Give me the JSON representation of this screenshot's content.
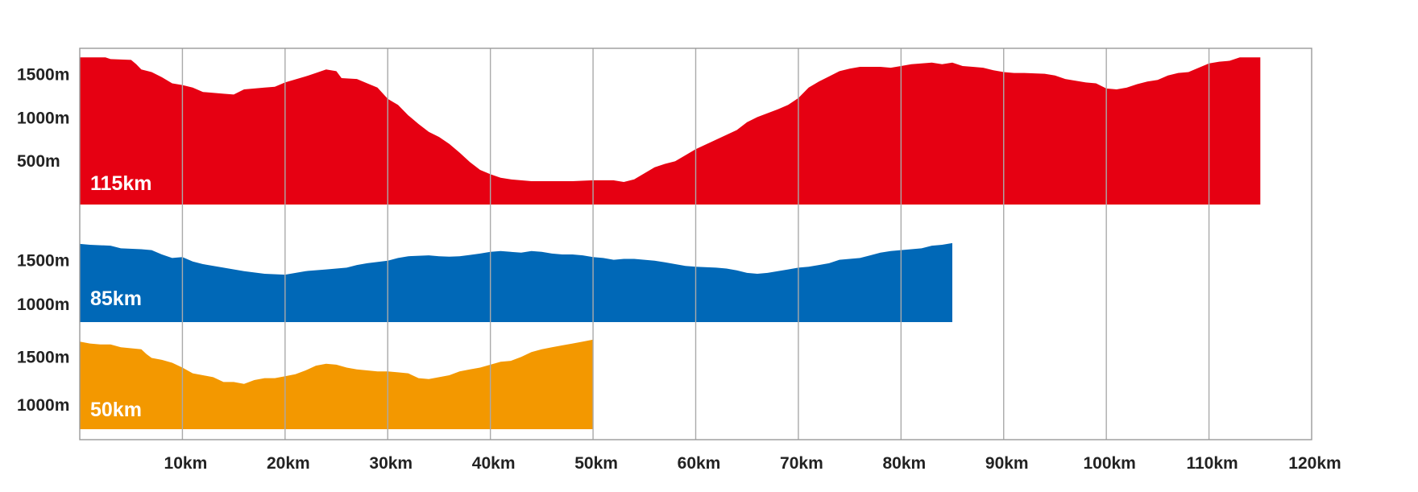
{
  "chart_data": {
    "type": "area",
    "x_unit": "km",
    "xlim": [
      0,
      120
    ],
    "x_ticks": [
      {
        "value": 10,
        "label": "10km"
      },
      {
        "value": 20,
        "label": "20km"
      },
      {
        "value": 30,
        "label": "30km"
      },
      {
        "value": 40,
        "label": "40km"
      },
      {
        "value": 50,
        "label": "50km"
      },
      {
        "value": 60,
        "label": "60km"
      },
      {
        "value": 70,
        "label": "70km"
      },
      {
        "value": 80,
        "label": "80km"
      },
      {
        "value": 90,
        "label": "90km"
      },
      {
        "value": 100,
        "label": "100km"
      },
      {
        "value": 110,
        "label": "110km"
      },
      {
        "value": 120,
        "label": "120km"
      }
    ],
    "grid": true,
    "series": [
      {
        "name": "115km",
        "color": "#e60012",
        "distance_km": 115,
        "ylim": [
          0,
          1700
        ],
        "y_ticks": [
          {
            "value": 500,
            "label": "500m"
          },
          {
            "value": 1000,
            "label": "1000m"
          },
          {
            "value": 1500,
            "label": "1500m"
          }
        ],
        "profile": [
          [
            0,
            1700
          ],
          [
            2.5,
            1700
          ],
          [
            3,
            1680
          ],
          [
            5,
            1670
          ],
          [
            5.5,
            1620
          ],
          [
            6,
            1560
          ],
          [
            7,
            1530
          ],
          [
            8,
            1470
          ],
          [
            9,
            1400
          ],
          [
            10,
            1380
          ],
          [
            11,
            1350
          ],
          [
            12,
            1300
          ],
          [
            14,
            1280
          ],
          [
            15,
            1270
          ],
          [
            16,
            1330
          ],
          [
            18,
            1350
          ],
          [
            19,
            1360
          ],
          [
            20,
            1410
          ],
          [
            22,
            1480
          ],
          [
            23,
            1520
          ],
          [
            24,
            1560
          ],
          [
            25,
            1540
          ],
          [
            25.5,
            1460
          ],
          [
            27,
            1450
          ],
          [
            28,
            1400
          ],
          [
            29,
            1350
          ],
          [
            30,
            1220
          ],
          [
            31,
            1150
          ],
          [
            32,
            1030
          ],
          [
            33,
            930
          ],
          [
            34,
            840
          ],
          [
            35,
            780
          ],
          [
            36,
            700
          ],
          [
            37,
            600
          ],
          [
            38,
            490
          ],
          [
            39,
            400
          ],
          [
            40,
            350
          ],
          [
            41,
            310
          ],
          [
            42,
            290
          ],
          [
            44,
            270
          ],
          [
            46,
            270
          ],
          [
            48,
            270
          ],
          [
            50,
            280
          ],
          [
            52,
            280
          ],
          [
            53,
            260
          ],
          [
            54,
            290
          ],
          [
            55,
            360
          ],
          [
            56,
            430
          ],
          [
            57,
            470
          ],
          [
            58,
            500
          ],
          [
            59,
            570
          ],
          [
            60,
            640
          ],
          [
            62,
            750
          ],
          [
            64,
            860
          ],
          [
            65,
            950
          ],
          [
            66,
            1010
          ],
          [
            68,
            1100
          ],
          [
            69,
            1150
          ],
          [
            70,
            1230
          ],
          [
            71,
            1350
          ],
          [
            72,
            1420
          ],
          [
            73,
            1480
          ],
          [
            74,
            1540
          ],
          [
            75,
            1570
          ],
          [
            76,
            1590
          ],
          [
            78,
            1590
          ],
          [
            79,
            1580
          ],
          [
            80,
            1600
          ],
          [
            81,
            1620
          ],
          [
            82,
            1630
          ],
          [
            83,
            1640
          ],
          [
            84,
            1620
          ],
          [
            85,
            1640
          ],
          [
            86,
            1600
          ],
          [
            87,
            1590
          ],
          [
            88,
            1580
          ],
          [
            89,
            1550
          ],
          [
            90,
            1530
          ],
          [
            91,
            1520
          ],
          [
            92,
            1520
          ],
          [
            94,
            1510
          ],
          [
            95,
            1490
          ],
          [
            96,
            1450
          ],
          [
            98,
            1410
          ],
          [
            99,
            1400
          ],
          [
            100,
            1340
          ],
          [
            101,
            1330
          ],
          [
            102,
            1350
          ],
          [
            103,
            1390
          ],
          [
            104,
            1420
          ],
          [
            105,
            1440
          ],
          [
            106,
            1490
          ],
          [
            107,
            1520
          ],
          [
            108,
            1530
          ],
          [
            109,
            1580
          ],
          [
            110,
            1630
          ],
          [
            111,
            1650
          ],
          [
            112,
            1660
          ],
          [
            113,
            1700
          ],
          [
            115,
            1700
          ]
        ]
      },
      {
        "name": "85km",
        "color": "#0068b7",
        "distance_km": 85,
        "ylim": [
          800,
          1750
        ],
        "y_ticks": [
          {
            "value": 1000,
            "label": "1000m"
          },
          {
            "value": 1500,
            "label": "1500m"
          }
        ],
        "profile": [
          [
            0,
            1690
          ],
          [
            1,
            1680
          ],
          [
            3,
            1670
          ],
          [
            4,
            1640
          ],
          [
            6,
            1630
          ],
          [
            7,
            1620
          ],
          [
            8,
            1570
          ],
          [
            9,
            1530
          ],
          [
            10,
            1540
          ],
          [
            11,
            1490
          ],
          [
            12,
            1460
          ],
          [
            14,
            1420
          ],
          [
            16,
            1380
          ],
          [
            18,
            1350
          ],
          [
            20,
            1340
          ],
          [
            22,
            1380
          ],
          [
            24,
            1400
          ],
          [
            26,
            1420
          ],
          [
            27,
            1450
          ],
          [
            28,
            1470
          ],
          [
            30,
            1500
          ],
          [
            31,
            1530
          ],
          [
            32,
            1550
          ],
          [
            34,
            1560
          ],
          [
            35,
            1550
          ],
          [
            36,
            1545
          ],
          [
            37,
            1550
          ],
          [
            38,
            1565
          ],
          [
            39,
            1580
          ],
          [
            40,
            1600
          ],
          [
            41,
            1610
          ],
          [
            42,
            1600
          ],
          [
            43,
            1590
          ],
          [
            44,
            1610
          ],
          [
            45,
            1600
          ],
          [
            46,
            1580
          ],
          [
            47,
            1570
          ],
          [
            48,
            1570
          ],
          [
            49,
            1560
          ],
          [
            50,
            1540
          ],
          [
            51,
            1530
          ],
          [
            52,
            1510
          ],
          [
            53,
            1520
          ],
          [
            54,
            1520
          ],
          [
            55,
            1510
          ],
          [
            56,
            1500
          ],
          [
            57,
            1480
          ],
          [
            58,
            1460
          ],
          [
            59,
            1440
          ],
          [
            60,
            1430
          ],
          [
            62,
            1420
          ],
          [
            63,
            1410
          ],
          [
            64,
            1390
          ],
          [
            65,
            1360
          ],
          [
            66,
            1350
          ],
          [
            67,
            1360
          ],
          [
            68,
            1380
          ],
          [
            69,
            1400
          ],
          [
            70,
            1420
          ],
          [
            71,
            1430
          ],
          [
            72,
            1450
          ],
          [
            73,
            1470
          ],
          [
            74,
            1510
          ],
          [
            75,
            1520
          ],
          [
            76,
            1530
          ],
          [
            77,
            1560
          ],
          [
            78,
            1590
          ],
          [
            79,
            1610
          ],
          [
            80,
            1620
          ],
          [
            81,
            1630
          ],
          [
            82,
            1640
          ],
          [
            83,
            1670
          ],
          [
            84,
            1680
          ],
          [
            85,
            1700
          ]
        ]
      },
      {
        "name": "50km",
        "color": "#f39800",
        "distance_km": 50,
        "ylim": [
          750,
          1750
        ],
        "y_ticks": [
          {
            "value": 1000,
            "label": "1000m"
          },
          {
            "value": 1500,
            "label": "1500m"
          }
        ],
        "profile": [
          [
            0,
            1660
          ],
          [
            1,
            1640
          ],
          [
            2,
            1630
          ],
          [
            3,
            1630
          ],
          [
            4,
            1600
          ],
          [
            5,
            1590
          ],
          [
            6,
            1580
          ],
          [
            6.5,
            1530
          ],
          [
            7,
            1490
          ],
          [
            8,
            1470
          ],
          [
            9,
            1440
          ],
          [
            10,
            1390
          ],
          [
            11,
            1330
          ],
          [
            12,
            1310
          ],
          [
            13,
            1290
          ],
          [
            14,
            1240
          ],
          [
            15,
            1240
          ],
          [
            16,
            1220
          ],
          [
            17,
            1260
          ],
          [
            18,
            1280
          ],
          [
            19,
            1280
          ],
          [
            20,
            1300
          ],
          [
            21,
            1320
          ],
          [
            22,
            1360
          ],
          [
            23,
            1410
          ],
          [
            24,
            1430
          ],
          [
            25,
            1420
          ],
          [
            26,
            1390
          ],
          [
            27,
            1370
          ],
          [
            28,
            1360
          ],
          [
            29,
            1350
          ],
          [
            30,
            1350
          ],
          [
            31,
            1340
          ],
          [
            32,
            1330
          ],
          [
            33,
            1280
          ],
          [
            34,
            1270
          ],
          [
            35,
            1290
          ],
          [
            36,
            1310
          ],
          [
            37,
            1350
          ],
          [
            38,
            1370
          ],
          [
            39,
            1390
          ],
          [
            40,
            1420
          ],
          [
            41,
            1450
          ],
          [
            42,
            1460
          ],
          [
            43,
            1500
          ],
          [
            44,
            1550
          ],
          [
            45,
            1580
          ],
          [
            46,
            1600
          ],
          [
            47,
            1620
          ],
          [
            48,
            1640
          ],
          [
            49,
            1660
          ],
          [
            50,
            1680
          ]
        ]
      }
    ]
  }
}
